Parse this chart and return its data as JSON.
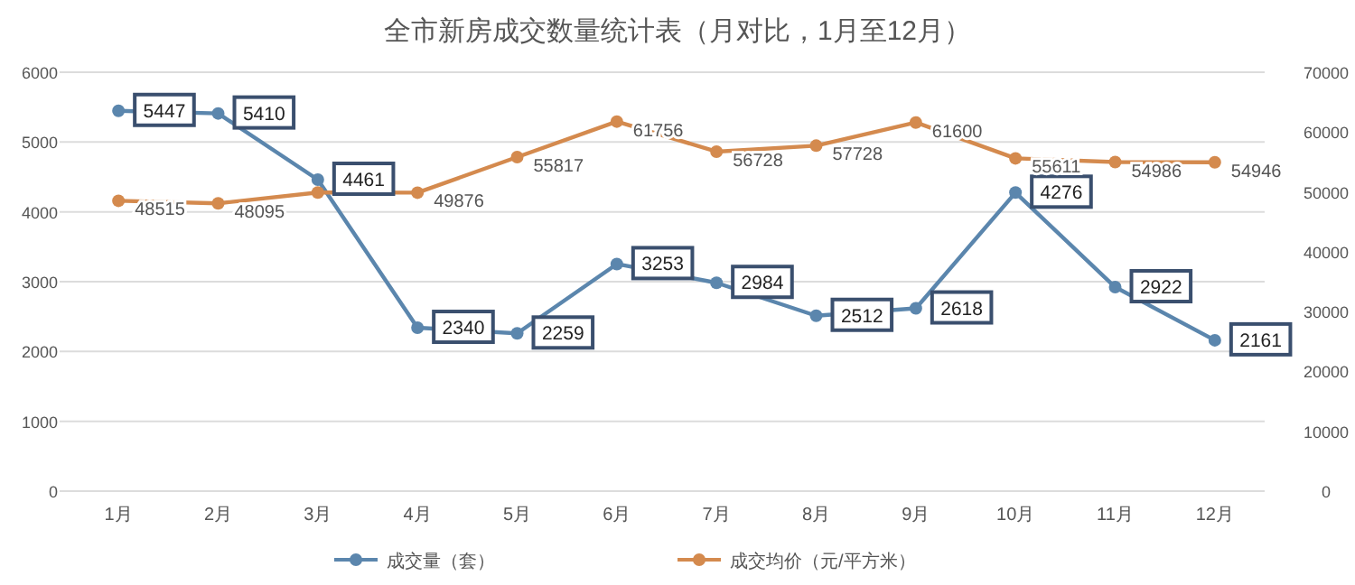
{
  "chart_data": {
    "type": "line",
    "title": "全市新房成交数量统计表（月对比，1月至12月）",
    "categories": [
      "1月",
      "2月",
      "3月",
      "4月",
      "5月",
      "6月",
      "7月",
      "8月",
      "9月",
      "10月",
      "11月",
      "12月"
    ],
    "series": [
      {
        "name": "成交量（套）",
        "color": "#5b86ad",
        "values": [
          5447,
          5410,
          4461,
          2340,
          2259,
          3253,
          2984,
          2512,
          2618,
          4276,
          2922,
          2161
        ],
        "value_labels": [
          "5447",
          "5410",
          "4461",
          "2340",
          "2259",
          "3253",
          "2984",
          "2512",
          "2618",
          "4276",
          "2922",
          "2161"
        ]
      },
      {
        "name": "成交均价（元/平方米）",
        "color": "#d48a4e",
        "axis": "y2",
        "values": [
          48515,
          48095,
          49900,
          49876,
          55817,
          61756,
          56728,
          57728,
          61600,
          55611,
          54986,
          54946
        ],
        "value_labels": [
          "48515",
          "48095",
          null,
          "49876",
          "55817",
          "61756",
          "56728",
          "57728",
          "61600",
          "55611",
          "54986",
          "54946"
        ]
      }
    ],
    "ylim": [
      0,
      6000
    ],
    "yticks": [
      0,
      1000,
      2000,
      3000,
      4000,
      5000,
      6000
    ],
    "y2lim": [
      0,
      70000
    ],
    "y2ticks": [
      0,
      10000,
      20000,
      30000,
      40000,
      50000,
      60000,
      70000
    ],
    "grid": "y",
    "legend": "bottom",
    "marker": "circle",
    "line_style": "solid"
  }
}
